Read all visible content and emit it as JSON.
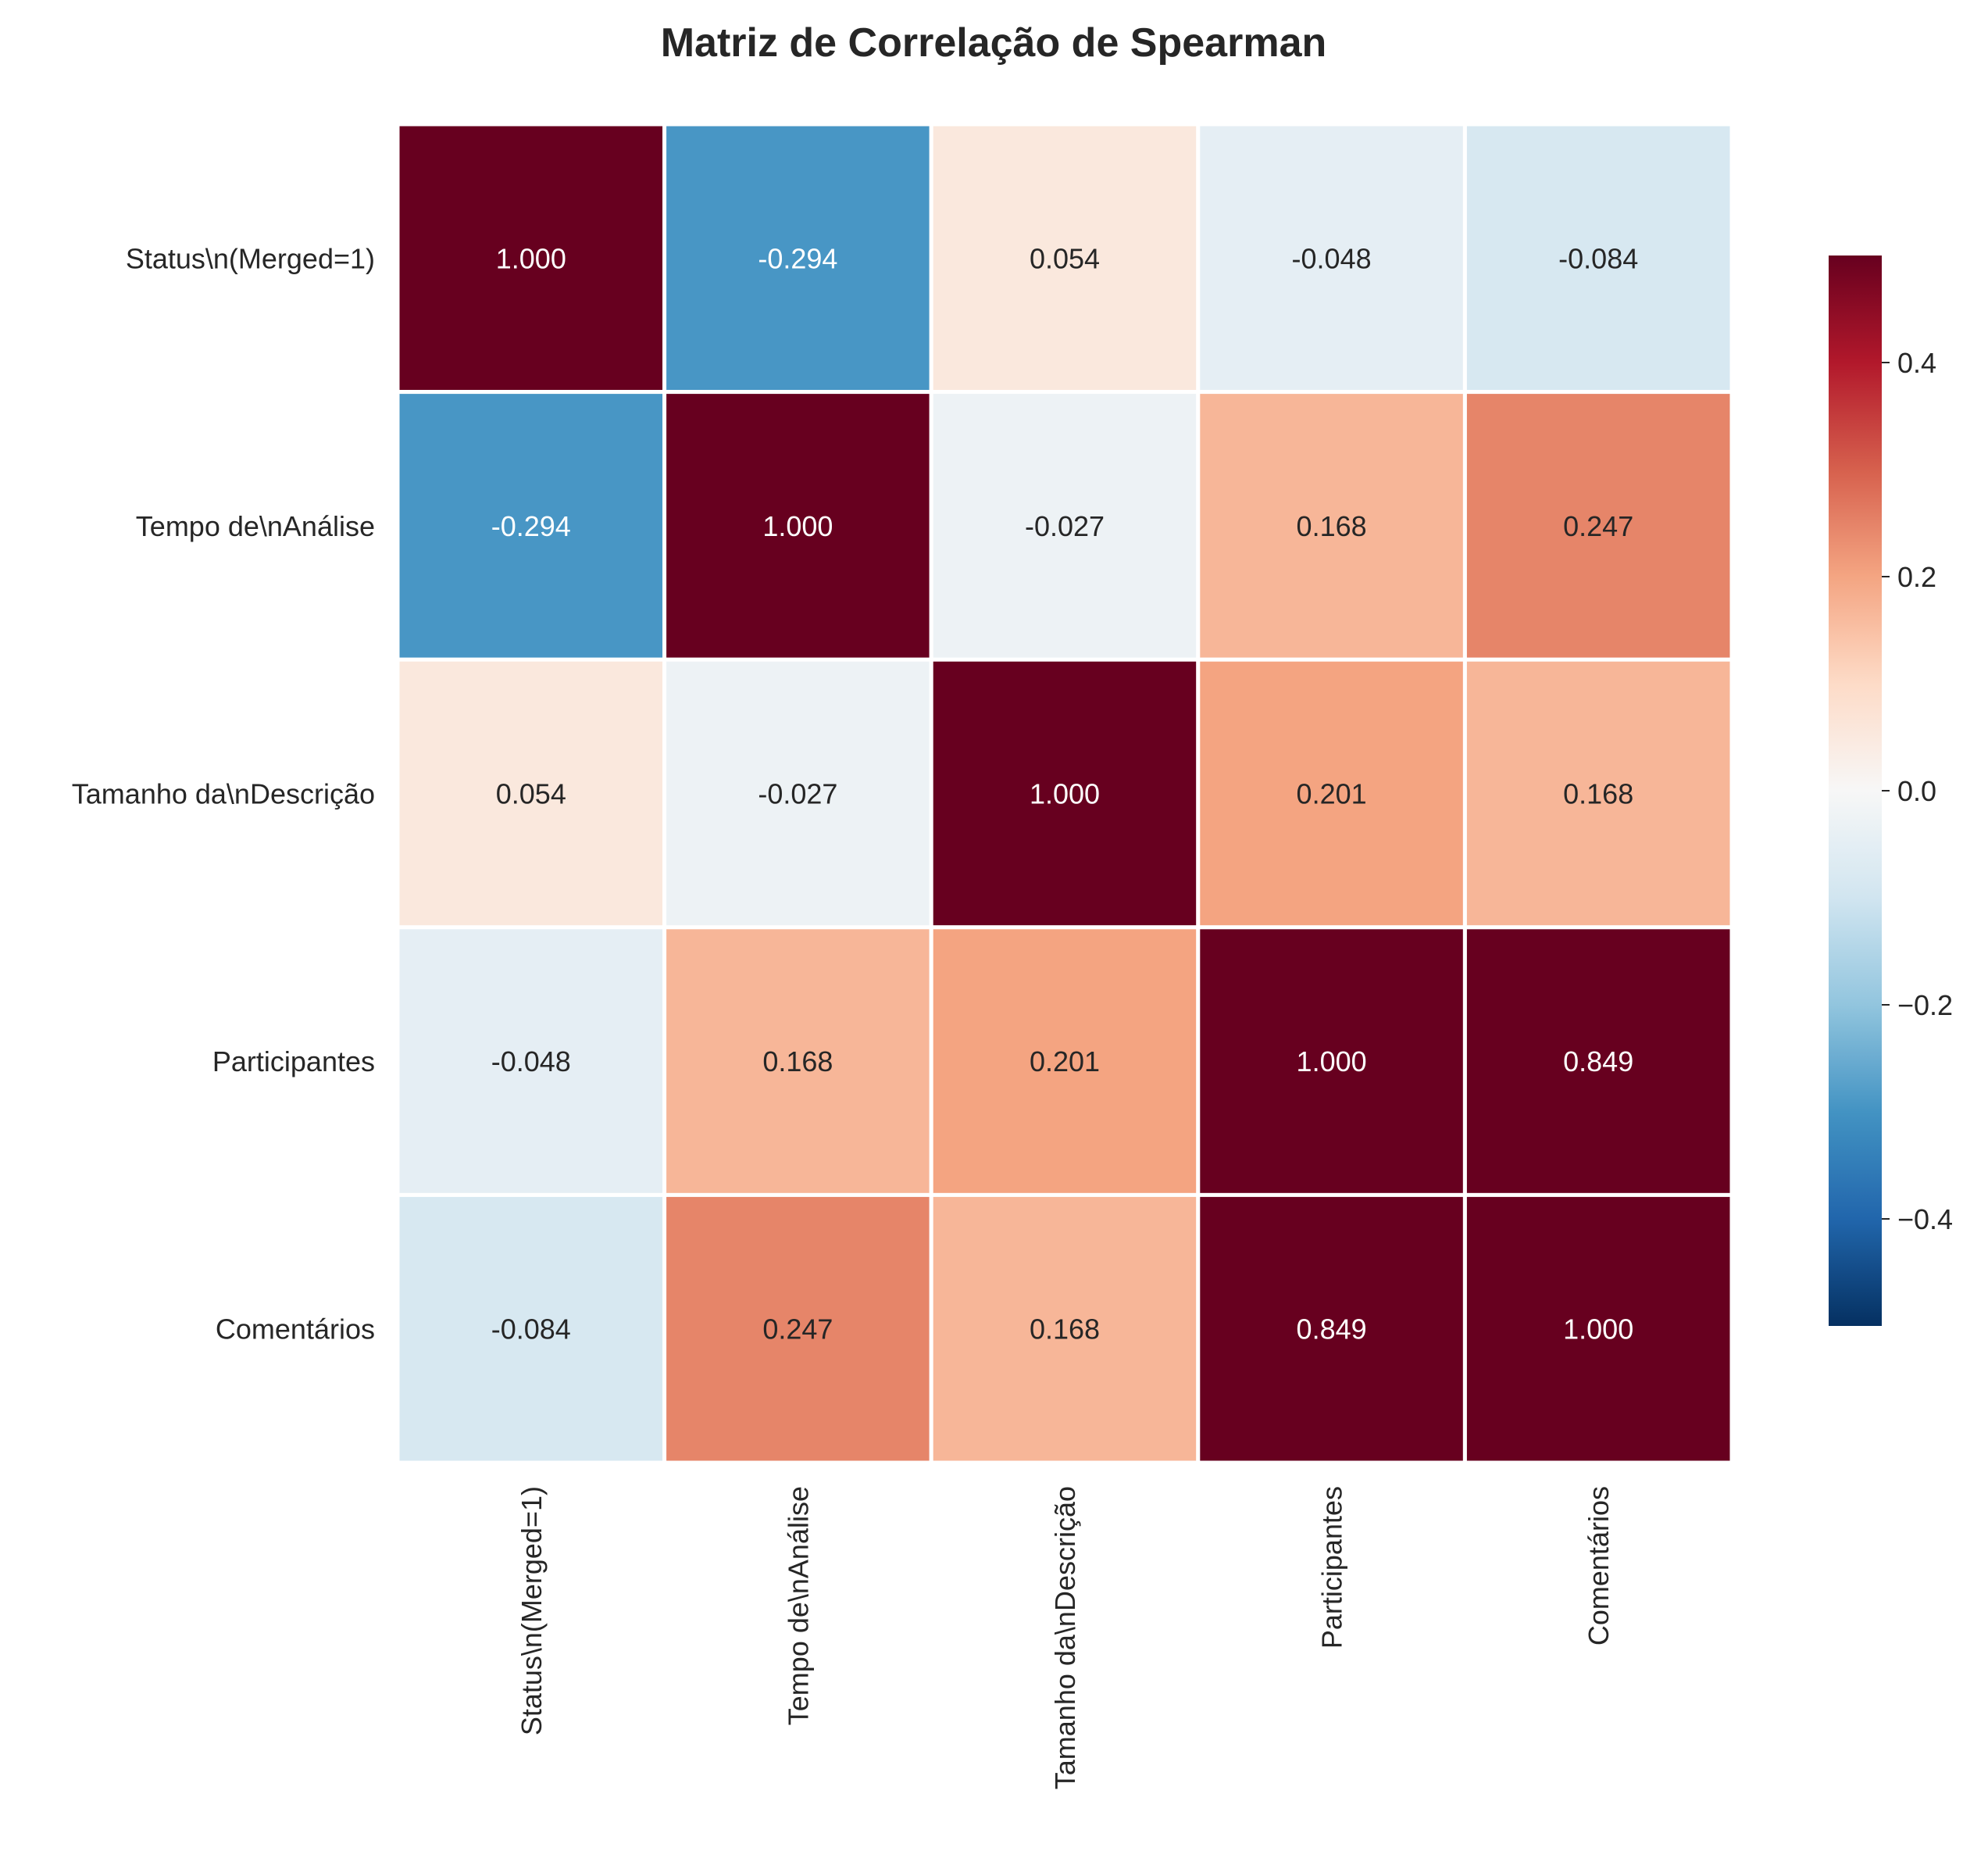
{
  "chart_data": {
    "type": "heatmap",
    "title": "Matriz de Correlação de Spearman",
    "row_labels": [
      "Status\\n(Merged=1)",
      "Tempo de\\nAnálise",
      "Tamanho da\\nDescrição",
      "Participantes",
      "Comentários"
    ],
    "col_labels": [
      "Status\\n(Merged=1)",
      "Tempo de\\nAnálise",
      "Tamanho da\\nDescrição",
      "Participantes",
      "Comentários"
    ],
    "values": [
      [
        1.0,
        -0.294,
        0.054,
        -0.048,
        -0.084
      ],
      [
        -0.294,
        1.0,
        -0.027,
        0.168,
        0.247
      ],
      [
        0.054,
        -0.027,
        1.0,
        0.201,
        0.168
      ],
      [
        -0.048,
        0.168,
        0.201,
        1.0,
        0.849
      ],
      [
        -0.084,
        0.247,
        0.168,
        0.849,
        1.0
      ]
    ],
    "value_format": "3 decimals",
    "colormap": "RdBu_r",
    "vmin": -0.5,
    "vmax": 0.5,
    "colorbar": {
      "ticks": [
        -0.4,
        -0.2,
        0.0,
        0.2,
        0.4
      ],
      "tick_labels": [
        "−0.4",
        "−0.2",
        "0.0",
        "0.2",
        "0.4"
      ],
      "placement": "right"
    },
    "grid": false,
    "cell_border_color": "#ffffff"
  }
}
